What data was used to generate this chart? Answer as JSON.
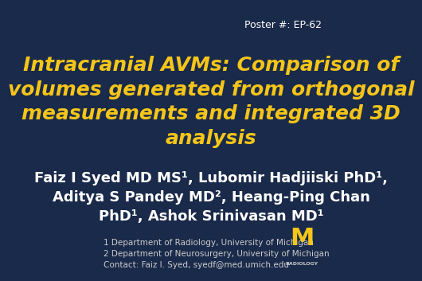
{
  "background_color": "#1a2a4a",
  "poster_number": "Poster #: EP-62",
  "poster_number_color": "#ffffff",
  "poster_number_fontsize": 9,
  "title": "Intracranial AVMs: Comparison of\nvolumes generated from orthogonal\nmeasurements and integrated 3D\nanalysis",
  "title_color": "#f5c518",
  "title_fontsize": 18,
  "authors_line1": "Faiz I Syed MD MS¹, Lubomir Hadjiiski PhD¹,",
  "authors_line2": "Aditya S Pandey MD², Heang-Ping Chan",
  "authors_line3": "PhD¹, Ashok Srinivasan MD¹",
  "authors_color": "#ffffff",
  "authors_fontsize": 13,
  "footer_line1": "1 Department of Radiology, University of Michigan",
  "footer_line2": "2 Department of Neurosurgery, University of Michigan",
  "footer_line3": "Contact: Faiz I. Syed, syedf@med.umich.edu",
  "footer_color": "#cccccc",
  "footer_fontsize": 7.5,
  "um_m_color": "#f5c518",
  "um_text_color": "#cccccc",
  "um_text": "RADIOLOGY"
}
